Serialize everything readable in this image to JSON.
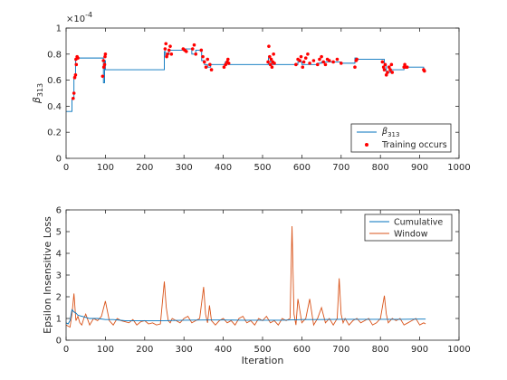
{
  "chart_data": [
    {
      "type": "line",
      "ylabel": "β313",
      "ylabel_base": "β",
      "ylabel_sub": "313",
      "exponent_label": "×10",
      "exponent_value": "-4",
      "xlim": [
        0,
        1000
      ],
      "ylim": [
        0,
        1
      ],
      "xticks": [
        "0",
        "100",
        "200",
        "300",
        "400",
        "500",
        "600",
        "700",
        "800",
        "900",
        "1000"
      ],
      "yticks": [
        "0",
        "0.2",
        "0.4",
        "0.6",
        "0.8",
        "1"
      ],
      "legend_position": "bottom-right",
      "legend": [
        {
          "label_base": "β",
          "label_sub": "313",
          "color": "#0072bd",
          "kind": "line"
        },
        {
          "label": "Training occurs",
          "color": "#ff0000",
          "kind": "marker"
        }
      ],
      "series": [
        {
          "name": "β313",
          "color": "#0072bd",
          "x": [
            0,
            15,
            15,
            20,
            20,
            24,
            24,
            28,
            28,
            95,
            95,
            98,
            98,
            100,
            100,
            250,
            250,
            253,
            253,
            258,
            258,
            262,
            262,
            300,
            300,
            320,
            320,
            330,
            330,
            345,
            345,
            352,
            352,
            360,
            360,
            368,
            368,
            405,
            405,
            412,
            412,
            515,
            515,
            520,
            520,
            525,
            525,
            590,
            590,
            600,
            600,
            640,
            640,
            650,
            650,
            700,
            700,
            735,
            735,
            740,
            740,
            810,
            810,
            815,
            815,
            825,
            825,
            860,
            860,
            910,
            910,
            915
          ],
          "y": [
            0.36,
            0.36,
            0.46,
            0.46,
            0.62,
            0.62,
            0.76,
            0.76,
            0.77,
            0.77,
            0.58,
            0.58,
            0.75,
            0.75,
            0.68,
            0.68,
            0.82,
            0.82,
            0.78,
            0.78,
            0.8,
            0.8,
            0.83,
            0.83,
            0.84,
            0.84,
            0.8,
            0.8,
            0.83,
            0.83,
            0.75,
            0.75,
            0.72,
            0.72,
            0.7,
            0.7,
            0.72,
            0.72,
            0.74,
            0.74,
            0.72,
            0.72,
            0.77,
            0.77,
            0.74,
            0.74,
            0.72,
            0.72,
            0.74,
            0.74,
            0.72,
            0.72,
            0.73,
            0.73,
            0.74,
            0.74,
            0.73,
            0.73,
            0.77,
            0.77,
            0.76,
            0.76,
            0.72,
            0.72,
            0.66,
            0.66,
            0.68,
            0.68,
            0.7,
            0.7,
            0.68,
            0.68
          ]
        },
        {
          "name": "Training occurs",
          "color": "#ff0000",
          "x": [
            18,
            20,
            22,
            24,
            25,
            26,
            28,
            30,
            93,
            95,
            96,
            98,
            99,
            100,
            252,
            254,
            256,
            258,
            262,
            265,
            268,
            298,
            302,
            306,
            322,
            326,
            330,
            344,
            348,
            352,
            356,
            360,
            366,
            370,
            402,
            406,
            410,
            412,
            414,
            514,
            516,
            518,
            520,
            522,
            524,
            526,
            528,
            530,
            585,
            590,
            595,
            598,
            602,
            605,
            610,
            615,
            620,
            630,
            640,
            645,
            650,
            655,
            660,
            665,
            670,
            680,
            690,
            700,
            735,
            738,
            740,
            805,
            808,
            810,
            812,
            815,
            818,
            822,
            825,
            828,
            830,
            860,
            862,
            864,
            868,
            910,
            912
          ],
          "y": [
            0.46,
            0.5,
            0.62,
            0.64,
            0.76,
            0.72,
            0.78,
            0.77,
            0.63,
            0.75,
            0.7,
            0.72,
            0.78,
            0.8,
            0.84,
            0.88,
            0.78,
            0.8,
            0.83,
            0.86,
            0.8,
            0.84,
            0.83,
            0.82,
            0.84,
            0.87,
            0.8,
            0.83,
            0.78,
            0.74,
            0.7,
            0.76,
            0.72,
            0.68,
            0.7,
            0.72,
            0.74,
            0.76,
            0.73,
            0.74,
            0.86,
            0.78,
            0.72,
            0.76,
            0.7,
            0.74,
            0.8,
            0.73,
            0.72,
            0.76,
            0.75,
            0.78,
            0.7,
            0.74,
            0.77,
            0.8,
            0.73,
            0.75,
            0.72,
            0.76,
            0.78,
            0.74,
            0.72,
            0.76,
            0.75,
            0.74,
            0.76,
            0.73,
            0.7,
            0.75,
            0.76,
            0.74,
            0.7,
            0.68,
            0.72,
            0.64,
            0.66,
            0.7,
            0.68,
            0.72,
            0.66,
            0.7,
            0.72,
            0.7,
            0.7,
            0.68,
            0.67
          ]
        }
      ]
    },
    {
      "type": "line",
      "xlabel": "Iteration",
      "ylabel": "Epsilon Insensitive Loss",
      "xlim": [
        0,
        1000
      ],
      "ylim": [
        0,
        6
      ],
      "xticks": [
        "0",
        "100",
        "200",
        "300",
        "400",
        "500",
        "600",
        "700",
        "800",
        "900",
        "1000"
      ],
      "yticks": [
        "0",
        "1",
        "2",
        "3",
        "4",
        "5",
        "6"
      ],
      "legend_position": "top-right",
      "legend": [
        {
          "label": "Cumulative",
          "color": "#0072bd",
          "kind": "line"
        },
        {
          "label": "Window",
          "color": "#d95319",
          "kind": "line"
        }
      ],
      "series": [
        {
          "name": "Cumulative",
          "color": "#0072bd",
          "x": [
            0,
            5,
            10,
            15,
            20,
            25,
            30,
            40,
            50,
            60,
            80,
            100,
            120,
            150,
            200,
            250,
            300,
            350,
            400,
            450,
            500,
            550,
            600,
            650,
            700,
            750,
            800,
            850,
            900,
            915
          ],
          "y": [
            0.8,
            0.75,
            0.9,
            1.4,
            1.3,
            1.25,
            1.15,
            1.1,
            1.05,
            1.0,
            1.0,
            0.95,
            0.95,
            0.9,
            0.9,
            0.9,
            0.92,
            0.93,
            0.93,
            0.92,
            0.92,
            0.92,
            0.95,
            0.95,
            0.96,
            0.96,
            0.96,
            0.96,
            0.97,
            0.97
          ]
        },
        {
          "name": "Window",
          "color": "#d95319",
          "x": [
            0,
            10,
            15,
            20,
            25,
            30,
            35,
            40,
            45,
            50,
            60,
            70,
            80,
            90,
            100,
            110,
            120,
            130,
            140,
            150,
            160,
            170,
            180,
            190,
            200,
            210,
            220,
            230,
            240,
            250,
            255,
            260,
            265,
            270,
            280,
            290,
            300,
            310,
            320,
            330,
            340,
            350,
            355,
            360,
            365,
            370,
            380,
            390,
            400,
            410,
            420,
            430,
            440,
            450,
            460,
            470,
            480,
            490,
            500,
            510,
            520,
            530,
            540,
            550,
            560,
            570,
            575,
            580,
            585,
            590,
            600,
            610,
            620,
            630,
            640,
            650,
            660,
            670,
            680,
            690,
            695,
            700,
            705,
            710,
            720,
            730,
            740,
            750,
            760,
            770,
            780,
            790,
            800,
            810,
            815,
            820,
            830,
            840,
            850,
            860,
            870,
            880,
            890,
            900,
            910,
            915
          ],
          "y": [
            0.7,
            0.6,
            1.2,
            2.15,
            0.9,
            1.1,
            0.8,
            0.7,
            1.0,
            1.2,
            0.7,
            1.0,
            0.9,
            1.1,
            1.8,
            0.9,
            0.7,
            1.0,
            0.9,
            0.85,
            0.8,
            0.95,
            0.7,
            0.85,
            0.9,
            0.75,
            0.8,
            0.7,
            0.75,
            2.7,
            1.5,
            0.9,
            0.8,
            1.0,
            0.9,
            0.8,
            1.0,
            1.1,
            0.8,
            0.9,
            1.0,
            2.45,
            1.2,
            0.8,
            1.6,
            0.9,
            0.7,
            0.9,
            1.0,
            0.8,
            0.9,
            0.7,
            1.0,
            1.1,
            0.8,
            0.9,
            0.7,
            1.0,
            0.9,
            1.1,
            0.8,
            0.9,
            0.7,
            1.0,
            0.9,
            1.0,
            5.25,
            1.2,
            0.7,
            1.9,
            0.8,
            1.0,
            1.9,
            0.7,
            1.0,
            1.5,
            0.8,
            1.0,
            0.7,
            1.0,
            2.85,
            1.2,
            0.8,
            1.0,
            0.7,
            0.9,
            1.0,
            0.8,
            0.9,
            1.0,
            0.7,
            0.8,
            1.0,
            2.05,
            1.2,
            0.8,
            1.0,
            0.9,
            1.0,
            0.7,
            0.8,
            0.9,
            1.0,
            0.7,
            0.8,
            0.75
          ]
        }
      ]
    }
  ]
}
